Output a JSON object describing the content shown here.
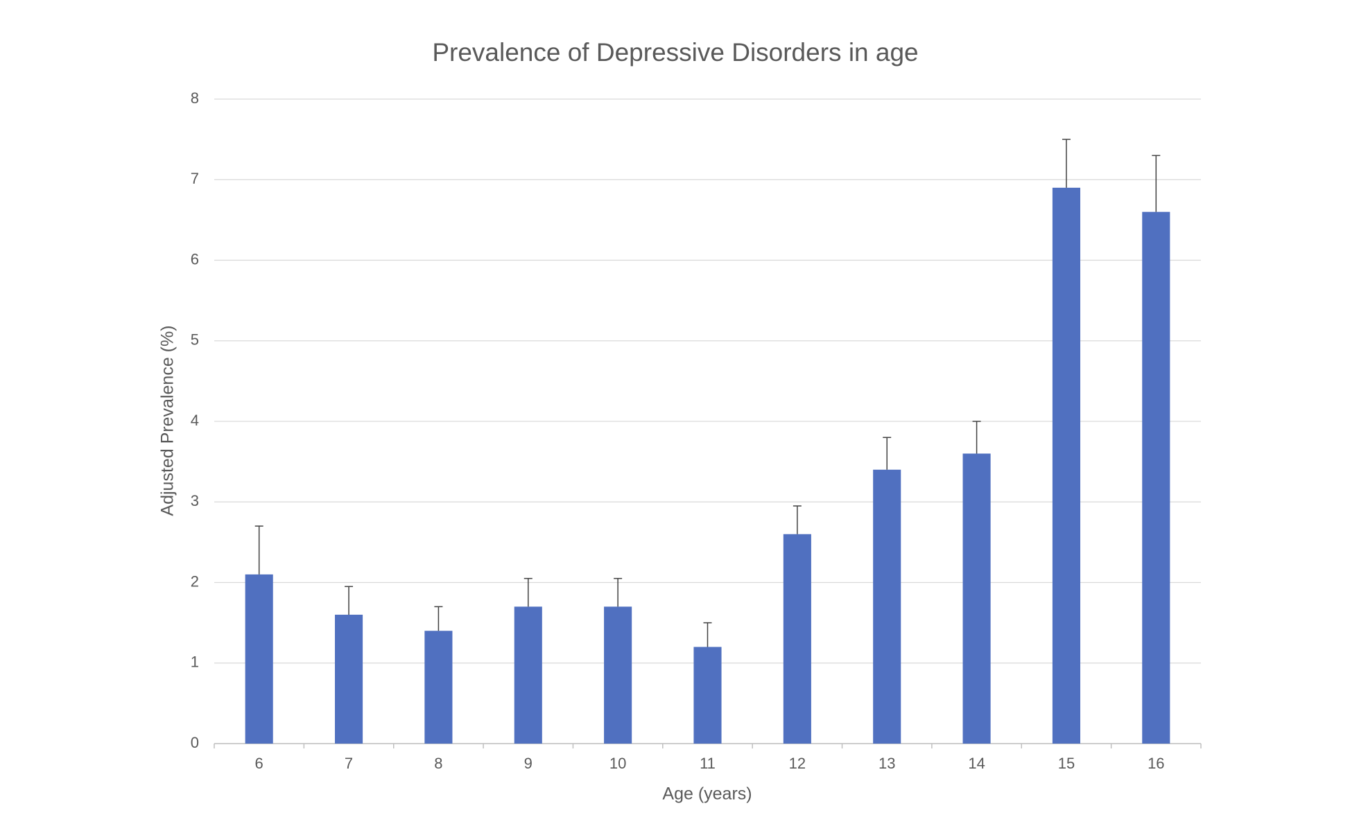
{
  "chart_data": {
    "type": "bar",
    "title": "Prevalence of Depressive Disorders in age",
    "x_label": "Age (years)",
    "y_label": "Adjusted Prevalence (%)",
    "categories": [
      "6",
      "7",
      "8",
      "9",
      "10",
      "11",
      "12",
      "13",
      "14",
      "15",
      "16"
    ],
    "values": [
      2.1,
      1.6,
      1.4,
      1.7,
      1.7,
      1.2,
      2.6,
      3.4,
      3.6,
      6.9,
      6.6
    ],
    "errors": [
      0.6,
      0.35,
      0.3,
      0.35,
      0.35,
      0.3,
      0.35,
      0.4,
      0.4,
      0.6,
      0.7
    ],
    "color": "#5070c0",
    "ylim": [
      0,
      8
    ],
    "yticks": [
      0,
      1,
      2,
      3,
      4,
      5,
      6,
      7,
      8
    ],
    "grid": true
  }
}
